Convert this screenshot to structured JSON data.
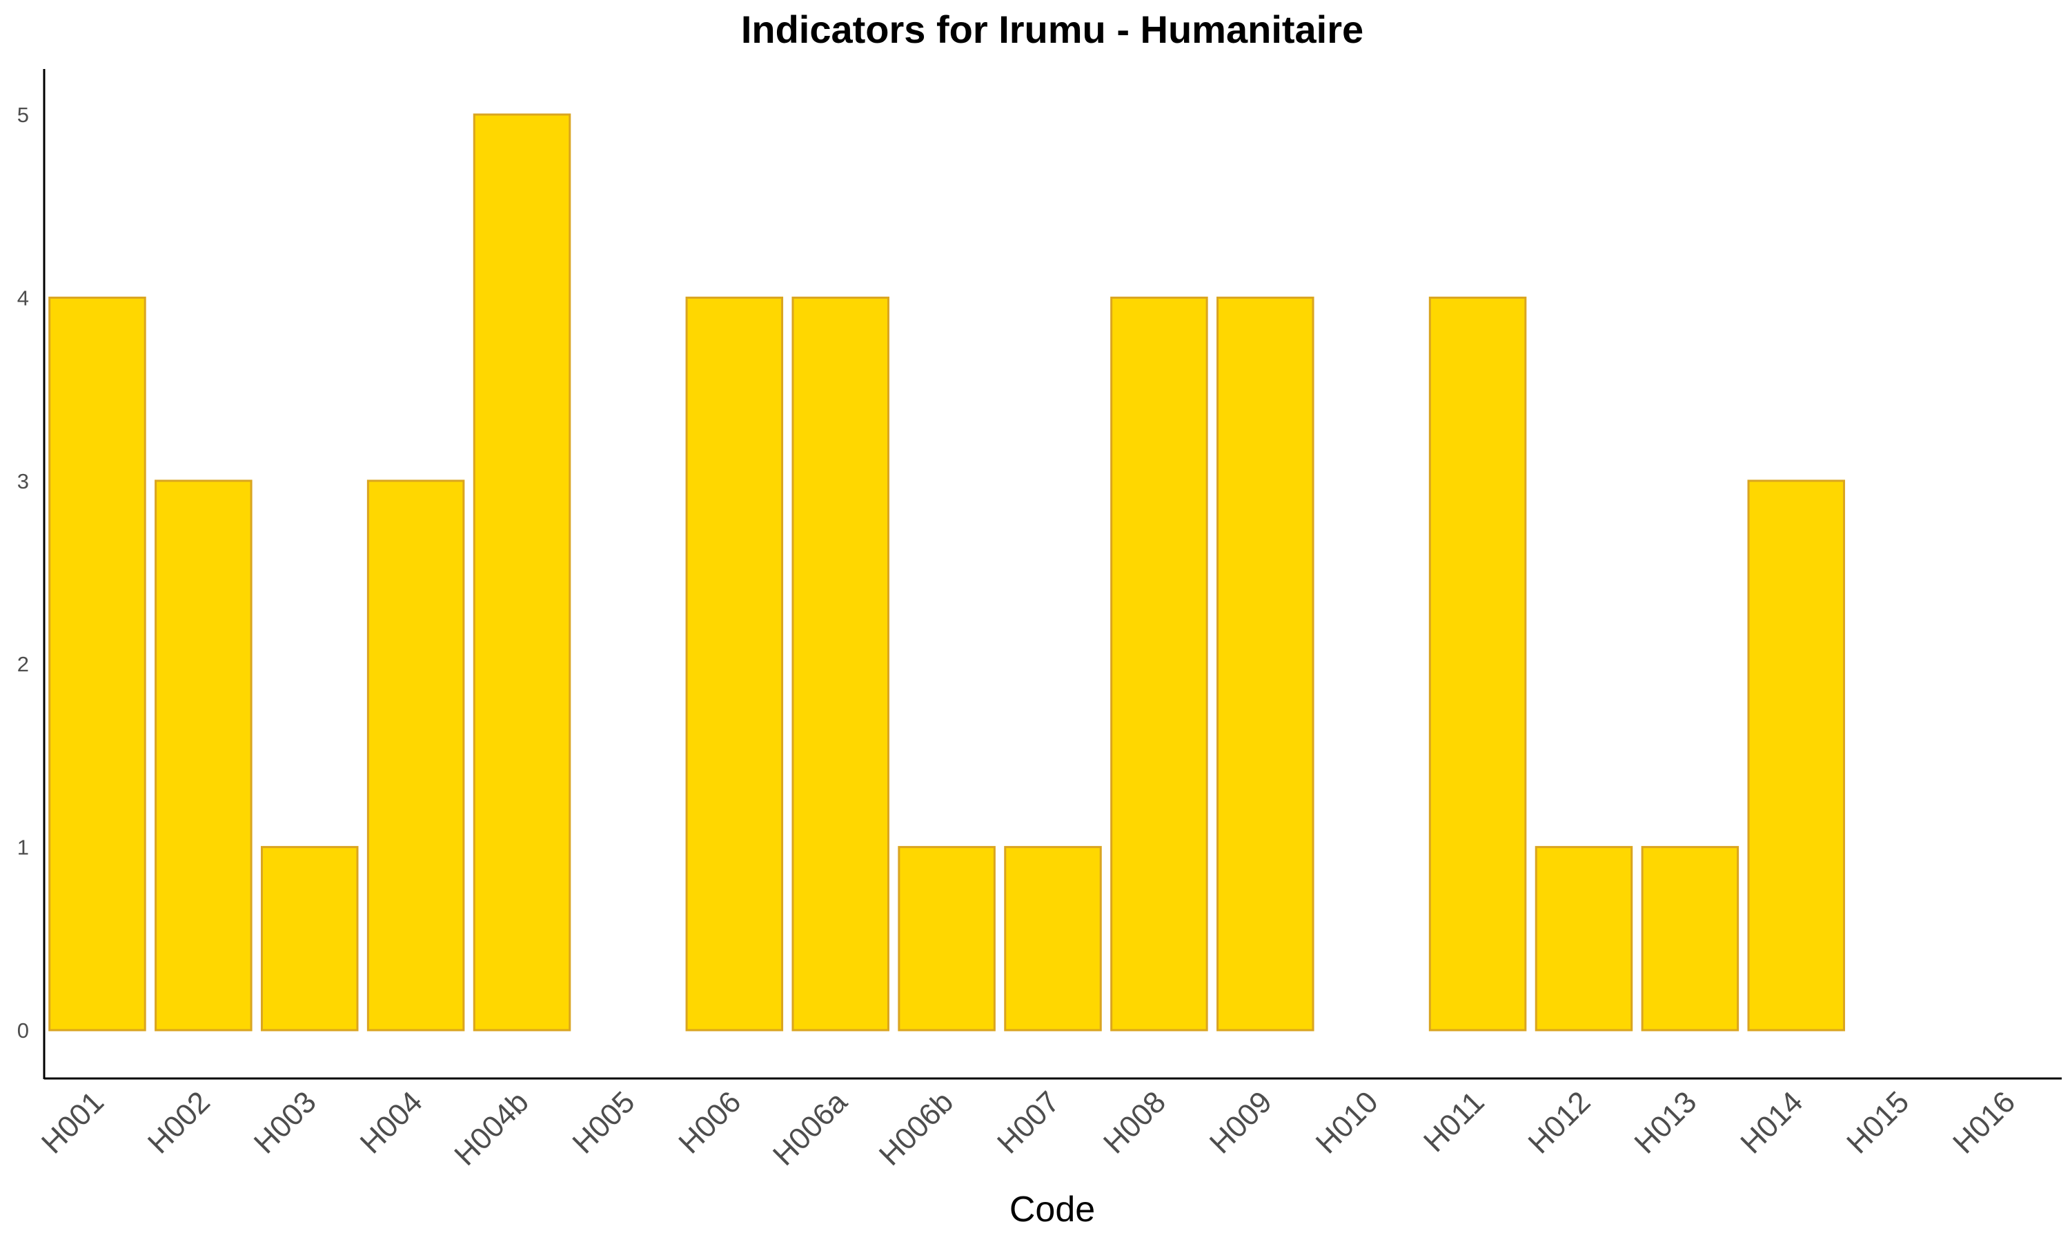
{
  "chart_data": {
    "type": "bar",
    "title": "Indicators for Irumu - Humanitaire",
    "xlabel": "Code",
    "ylabel": "",
    "categories": [
      "H001",
      "H002",
      "H003",
      "H004",
      "H004b",
      "H005",
      "H006",
      "H006a",
      "H006b",
      "H007",
      "H008",
      "H009",
      "H010",
      "H011",
      "H012",
      "H013",
      "H014",
      "H015",
      "H016"
    ],
    "values": [
      4,
      3,
      1,
      3,
      5,
      0,
      4,
      4,
      1,
      1,
      4,
      4,
      0,
      4,
      1,
      1,
      3,
      0,
      0
    ],
    "ylim": [
      0,
      5
    ],
    "yticks": [
      0,
      1,
      2,
      3,
      4,
      5
    ],
    "grid": false,
    "legend": "none",
    "bar_fill": "#FFD700",
    "bar_stroke": "#DAA520"
  }
}
